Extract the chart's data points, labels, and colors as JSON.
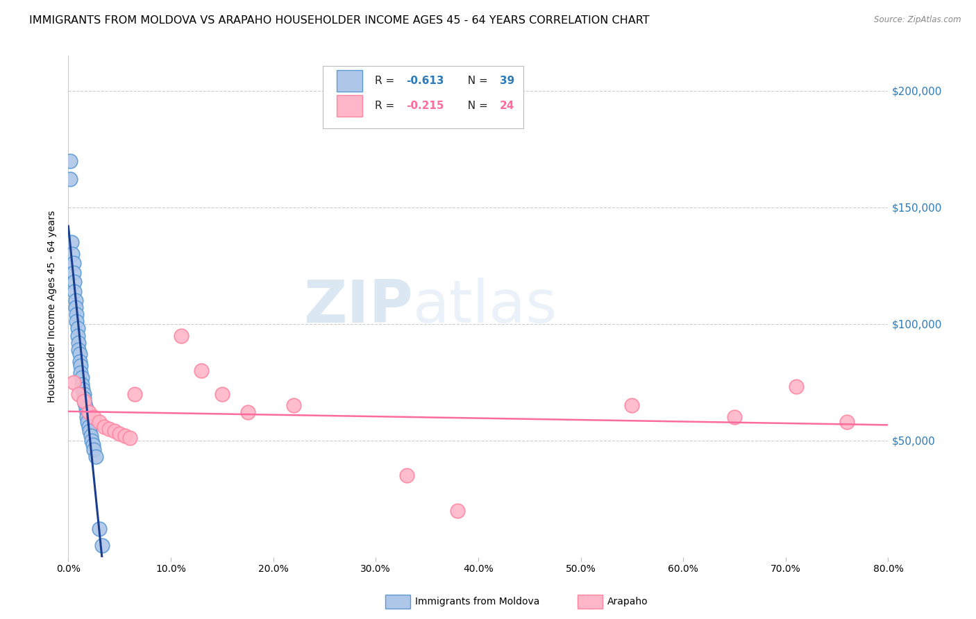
{
  "title": "IMMIGRANTS FROM MOLDOVA VS ARAPAHO HOUSEHOLDER INCOME AGES 45 - 64 YEARS CORRELATION CHART",
  "source": "Source: ZipAtlas.com",
  "ylabel": "Householder Income Ages 45 - 64 years",
  "ytick_labels": [
    "$50,000",
    "$100,000",
    "$150,000",
    "$200,000"
  ],
  "ytick_values": [
    50000,
    100000,
    150000,
    200000
  ],
  "xlim": [
    0.0,
    0.8
  ],
  "ylim": [
    0,
    215000
  ],
  "watermark_zip": "ZIP",
  "watermark_atlas": "atlas",
  "moldova_x": [
    0.002,
    0.002,
    0.003,
    0.004,
    0.005,
    0.005,
    0.006,
    0.006,
    0.007,
    0.007,
    0.008,
    0.008,
    0.009,
    0.009,
    0.01,
    0.01,
    0.011,
    0.011,
    0.012,
    0.012,
    0.013,
    0.013,
    0.014,
    0.015,
    0.015,
    0.016,
    0.017,
    0.018,
    0.018,
    0.019,
    0.02,
    0.021,
    0.022,
    0.023,
    0.024,
    0.025,
    0.027,
    0.03,
    0.033
  ],
  "moldova_y": [
    170000,
    162000,
    135000,
    130000,
    126000,
    122000,
    118000,
    114000,
    110000,
    107000,
    104000,
    101000,
    98000,
    95000,
    92000,
    89000,
    87000,
    84000,
    82000,
    79000,
    77000,
    74000,
    72000,
    70000,
    68000,
    66000,
    64000,
    62000,
    60000,
    58000,
    56000,
    54000,
    52000,
    50000,
    48000,
    46000,
    43000,
    12000,
    5000
  ],
  "arapaho_x": [
    0.005,
    0.01,
    0.015,
    0.02,
    0.025,
    0.03,
    0.035,
    0.04,
    0.045,
    0.05,
    0.055,
    0.06,
    0.065,
    0.11,
    0.13,
    0.15,
    0.175,
    0.22,
    0.33,
    0.38,
    0.55,
    0.65,
    0.71,
    0.76
  ],
  "arapaho_y": [
    75000,
    70000,
    67000,
    62000,
    60000,
    58000,
    56000,
    55000,
    54000,
    53000,
    52000,
    51000,
    70000,
    95000,
    80000,
    70000,
    62000,
    65000,
    35000,
    20000,
    65000,
    60000,
    73000,
    58000
  ],
  "moldova_color": "#AEC6E8",
  "moldova_edge": "#5B9BD5",
  "arapaho_color": "#FFB6C8",
  "arapaho_edge": "#FF85A1",
  "moldova_line_color": "#1A3E8C",
  "arapaho_line_color": "#FF6B9D",
  "moldova_R": -0.613,
  "moldova_N": 39,
  "arapaho_R": -0.215,
  "arapaho_N": 24,
  "legend_labels": [
    "Immigrants from Moldova",
    "Arapaho"
  ],
  "title_fontsize": 11.5,
  "axis_fontsize": 10,
  "legend_fontsize": 11,
  "ytick_color": "#2B7BBA",
  "source_color": "#888888"
}
